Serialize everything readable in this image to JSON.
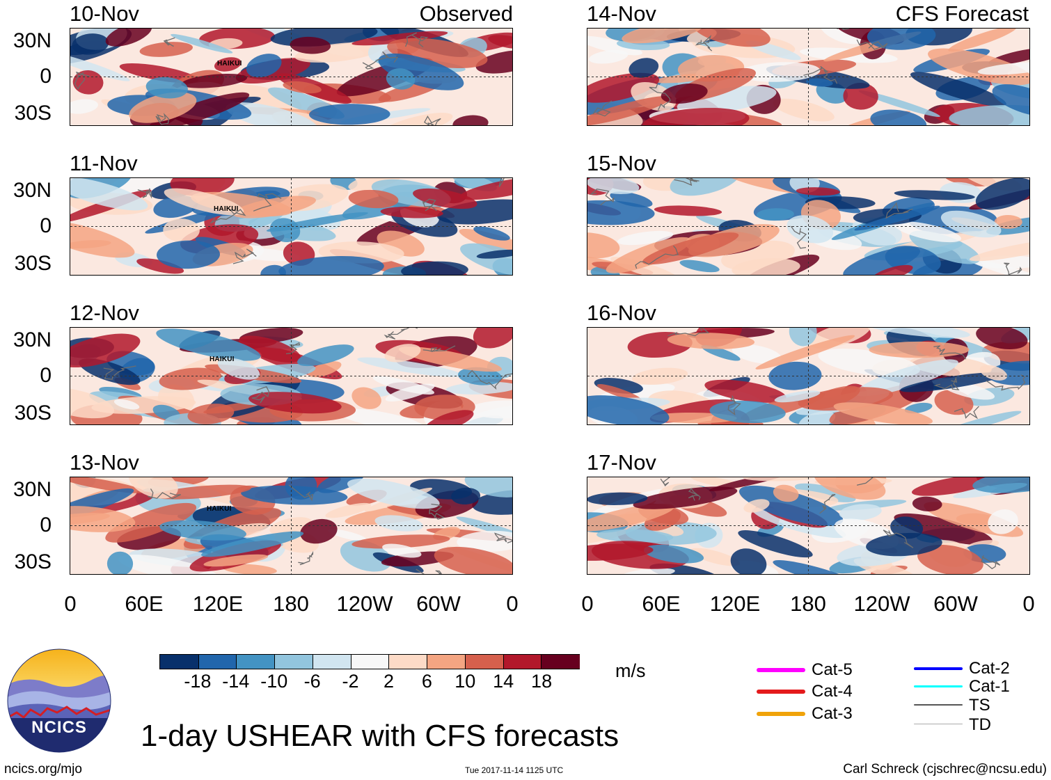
{
  "panels_left": {
    "header": "Observed",
    "dates": [
      "10-Nov",
      "11-Nov",
      "12-Nov",
      "13-Nov"
    ],
    "storm_labels": [
      "HAIKUI",
      "HAIKUI",
      "HAIKUI",
      "HAIKUI"
    ]
  },
  "panels_right": {
    "header": "CFS Forecast",
    "dates": [
      "14-Nov",
      "15-Nov",
      "16-Nov",
      "17-Nov"
    ]
  },
  "lat_labels": [
    "30N",
    "0",
    "30S"
  ],
  "lon_labels": [
    "0",
    "60E",
    "120E",
    "180",
    "120W",
    "60W",
    "0"
  ],
  "colorbar": {
    "unit": "m/s",
    "ticks": [
      "-18",
      "-14",
      "-10",
      "-6",
      "-2",
      "2",
      "6",
      "10",
      "14",
      "18"
    ],
    "colors": [
      "#08306b",
      "#2166ac",
      "#4393c3",
      "#92c5de",
      "#d1e5f0",
      "#f7f7f7",
      "#fddbc7",
      "#f4a582",
      "#d6604d",
      "#b2182b",
      "#67001f"
    ]
  },
  "legend": {
    "left": [
      {
        "label": "Cat-5",
        "color": "#ff00ff"
      },
      {
        "label": "Cat-4",
        "color": "#e41a1c"
      },
      {
        "label": "Cat-3",
        "color": "#f0a30a"
      }
    ],
    "right": [
      {
        "label": "Cat-2",
        "color": "#0000ff"
      },
      {
        "label": "Cat-1",
        "color": "#00ffff"
      },
      {
        "label": "TS",
        "color": "#555555"
      },
      {
        "label": "TD",
        "color": "#aaaaaa"
      }
    ]
  },
  "title": "1-day USHEAR with CFS forecasts",
  "logo": {
    "text": "NCICS"
  },
  "footer": {
    "left": "ncics.org/mjo",
    "center": "Tue 2017-11-14 1125 UTC",
    "right": "Carl Schreck (cjschrec@ncsu.edu)"
  }
}
